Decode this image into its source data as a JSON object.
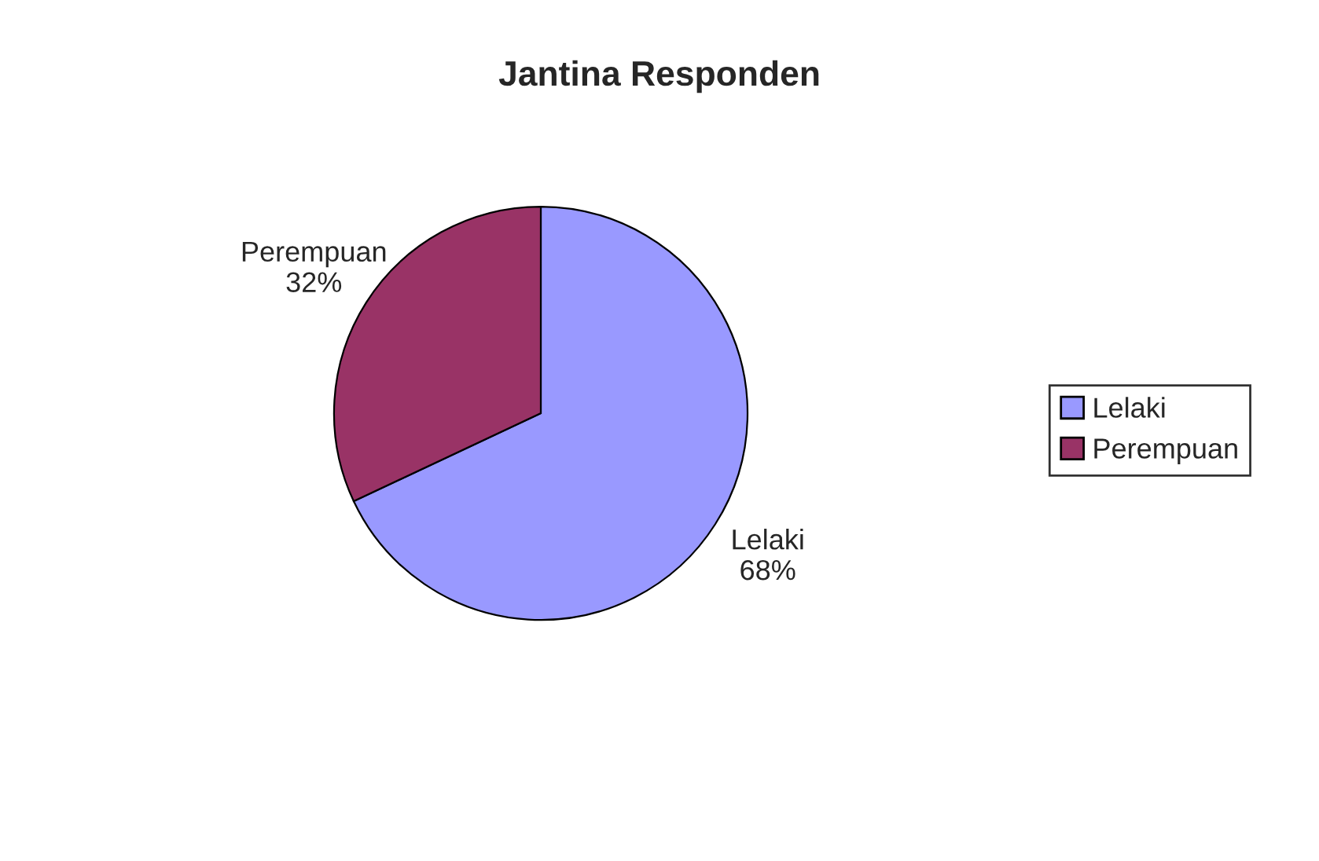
{
  "chart_data": {
    "type": "pie",
    "title": "Jantina Responden",
    "categories": [
      "Lelaki",
      "Perempuan"
    ],
    "values": [
      68,
      32
    ],
    "colors": [
      "#9999ff",
      "#993366"
    ],
    "value_labels": [
      "68%",
      "32%"
    ],
    "legend": "right"
  }
}
